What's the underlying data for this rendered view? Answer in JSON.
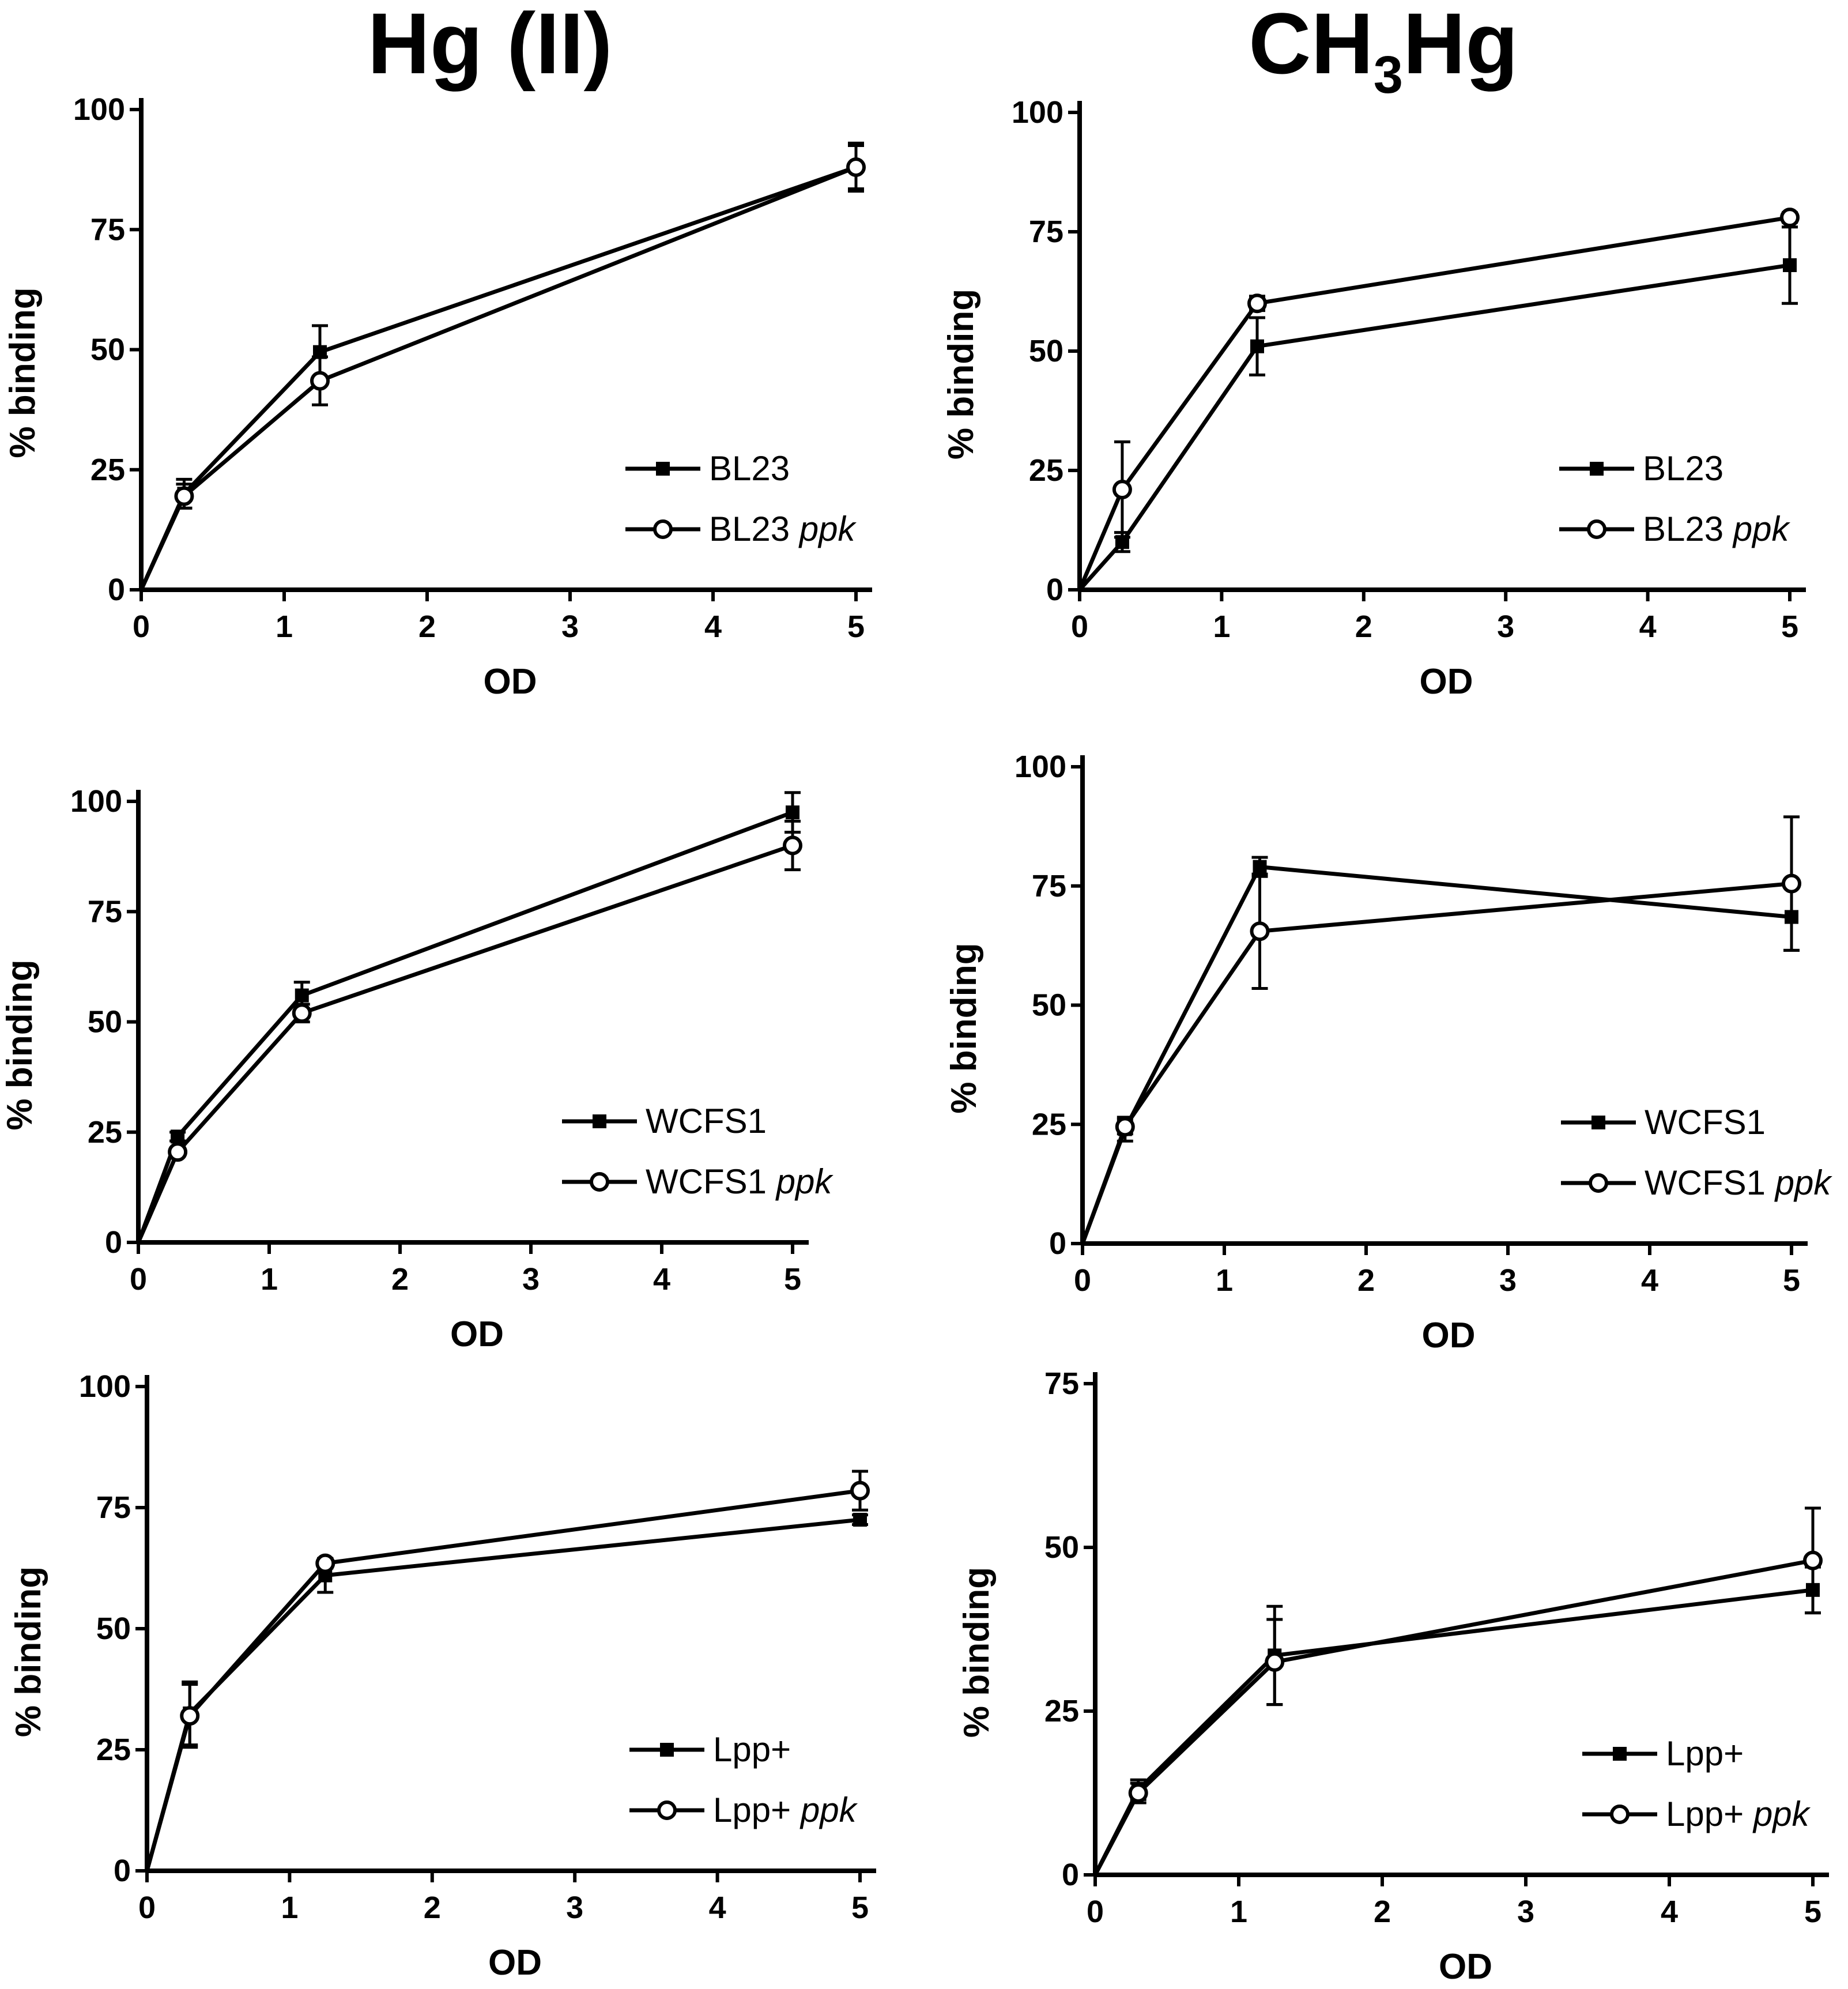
{
  "figure": {
    "column_titles": {
      "left": "Hg (II)",
      "right_base": "CH",
      "right_sub": "3",
      "right_tail": "Hg"
    },
    "colors": {
      "line": "#000000",
      "open_fill": "#ffffff",
      "background": "#ffffff"
    }
  },
  "chart_data": [
    {
      "id": "hg2-bl23",
      "type": "line",
      "title": "Hg (II)",
      "xlabel": "OD",
      "ylabel": "% binding",
      "xlim": [
        0,
        5
      ],
      "ylim": [
        0,
        100
      ],
      "xticks": [
        "0",
        "1",
        "2",
        "3",
        "4",
        "5"
      ],
      "yticks": [
        "0",
        "25",
        "50",
        "75",
        "100"
      ],
      "legend_position": "bottom-right",
      "series": [
        {
          "name": "BL23",
          "name_italic": "",
          "marker": "filled-square",
          "x": [
            0,
            0.3,
            1.25,
            5
          ],
          "y": [
            0,
            20,
            49.5,
            88
          ],
          "err": [
            0,
            3,
            5.5,
            5
          ]
        },
        {
          "name": "BL23",
          "name_italic": "ppk",
          "marker": "open-circle",
          "x": [
            0,
            0.3,
            1.25,
            5
          ],
          "y": [
            0,
            19.5,
            43.5,
            88
          ],
          "err": [
            0,
            2.5,
            5,
            4.5
          ]
        }
      ]
    },
    {
      "id": "ch3hg-bl23",
      "type": "line",
      "title": "CH3Hg",
      "xlabel": "OD",
      "ylabel": "% binding",
      "xlim": [
        0,
        5
      ],
      "ylim": [
        0,
        100
      ],
      "xticks": [
        "0",
        "1",
        "2",
        "3",
        "4",
        "5"
      ],
      "yticks": [
        "0",
        "25",
        "50",
        "75",
        "100"
      ],
      "legend_position": "bottom-right",
      "series": [
        {
          "name": "BL23",
          "name_italic": "",
          "marker": "filled-square",
          "x": [
            0,
            0.3,
            1.25,
            5
          ],
          "y": [
            0,
            10,
            51,
            68
          ],
          "err": [
            0,
            2,
            6,
            8
          ]
        },
        {
          "name": "BL23",
          "name_italic": "ppk",
          "marker": "open-circle",
          "x": [
            0,
            0.3,
            1.25,
            5
          ],
          "y": [
            0,
            21,
            60,
            78
          ],
          "err": [
            0,
            10,
            1.5,
            1
          ]
        }
      ]
    },
    {
      "id": "hg2-wcfs1",
      "type": "line",
      "title": "",
      "xlabel": "OD",
      "ylabel": "% binding",
      "xlim": [
        0,
        5
      ],
      "ylim": [
        0,
        100
      ],
      "xticks": [
        "0",
        "1",
        "2",
        "3",
        "4",
        "5"
      ],
      "yticks": [
        "0",
        "25",
        "50",
        "75",
        "100"
      ],
      "legend_position": "bottom-right",
      "series": [
        {
          "name": "WCFS1",
          "name_italic": "",
          "marker": "filled-square",
          "x": [
            0,
            0.3,
            1.25,
            5
          ],
          "y": [
            0,
            24,
            56,
            97.5
          ],
          "err": [
            0,
            1,
            3,
            4.5
          ]
        },
        {
          "name": "WCFS1",
          "name_italic": "ppk",
          "marker": "open-circle",
          "x": [
            0,
            0.3,
            1.25,
            5
          ],
          "y": [
            0,
            20.5,
            52,
            90
          ],
          "err": [
            0,
            1,
            2,
            5.5
          ]
        }
      ]
    },
    {
      "id": "ch3hg-wcfs1",
      "type": "line",
      "title": "",
      "xlabel": "OD",
      "ylabel": "% binding",
      "xlim": [
        0,
        5
      ],
      "ylim": [
        0,
        100
      ],
      "xticks": [
        "0",
        "1",
        "2",
        "3",
        "4",
        "5"
      ],
      "yticks": [
        "0",
        "25",
        "50",
        "75",
        "100"
      ],
      "legend_position": "bottom-right",
      "series": [
        {
          "name": "WCFS1",
          "name_italic": "",
          "marker": "filled-square",
          "x": [
            0,
            0.3,
            1.25,
            5
          ],
          "y": [
            0,
            24,
            79,
            68.5
          ],
          "err": [
            0,
            2.5,
            2,
            7
          ]
        },
        {
          "name": "WCFS1",
          "name_italic": "ppk",
          "marker": "open-circle",
          "x": [
            0,
            0.3,
            1.25,
            5
          ],
          "y": [
            0,
            24.5,
            65.5,
            75.5
          ],
          "err": [
            0,
            1.5,
            12,
            14
          ]
        }
      ]
    },
    {
      "id": "hg2-lpp",
      "type": "line",
      "title": "",
      "xlabel": "OD",
      "ylabel": "% binding",
      "xlim": [
        0,
        5
      ],
      "ylim": [
        0,
        100
      ],
      "xticks": [
        "0",
        "1",
        "2",
        "3",
        "4",
        "5"
      ],
      "yticks": [
        "0",
        "25",
        "50",
        "75",
        "100"
      ],
      "legend_position": "bottom-right",
      "series": [
        {
          "name": "Lpp+",
          "name_italic": "",
          "marker": "filled-square",
          "x": [
            0,
            0.3,
            1.25,
            5
          ],
          "y": [
            0,
            32.5,
            61,
            72.5
          ],
          "err": [
            0,
            6.5,
            3.5,
            1
          ]
        },
        {
          "name": "Lpp+",
          "name_italic": "ppk",
          "marker": "open-circle",
          "x": [
            0,
            0.3,
            1.25,
            5
          ],
          "y": [
            0,
            32,
            63.5,
            78.5
          ],
          "err": [
            0,
            6.5,
            1,
            4
          ]
        }
      ]
    },
    {
      "id": "ch3hg-lpp",
      "type": "line",
      "title": "",
      "xlabel": "OD",
      "ylabel": "% binding",
      "xlim": [
        0,
        5
      ],
      "ylim": [
        0,
        75
      ],
      "xticks": [
        "0",
        "1",
        "2",
        "3",
        "4",
        "5"
      ],
      "yticks": [
        "0",
        "25",
        "50",
        "75"
      ],
      "legend_position": "bottom-right",
      "series": [
        {
          "name": "Lpp+",
          "name_italic": "",
          "marker": "filled-square",
          "x": [
            0,
            0.3,
            1.25,
            5
          ],
          "y": [
            0,
            13,
            33.5,
            43.5
          ],
          "err": [
            0,
            1.5,
            7.5,
            3.5
          ]
        },
        {
          "name": "Lpp+",
          "name_italic": "ppk",
          "marker": "open-circle",
          "x": [
            0,
            0.3,
            1.25,
            5
          ],
          "y": [
            0,
            12.5,
            32.5,
            48
          ],
          "err": [
            0,
            1.5,
            6.5,
            8
          ]
        }
      ]
    }
  ]
}
